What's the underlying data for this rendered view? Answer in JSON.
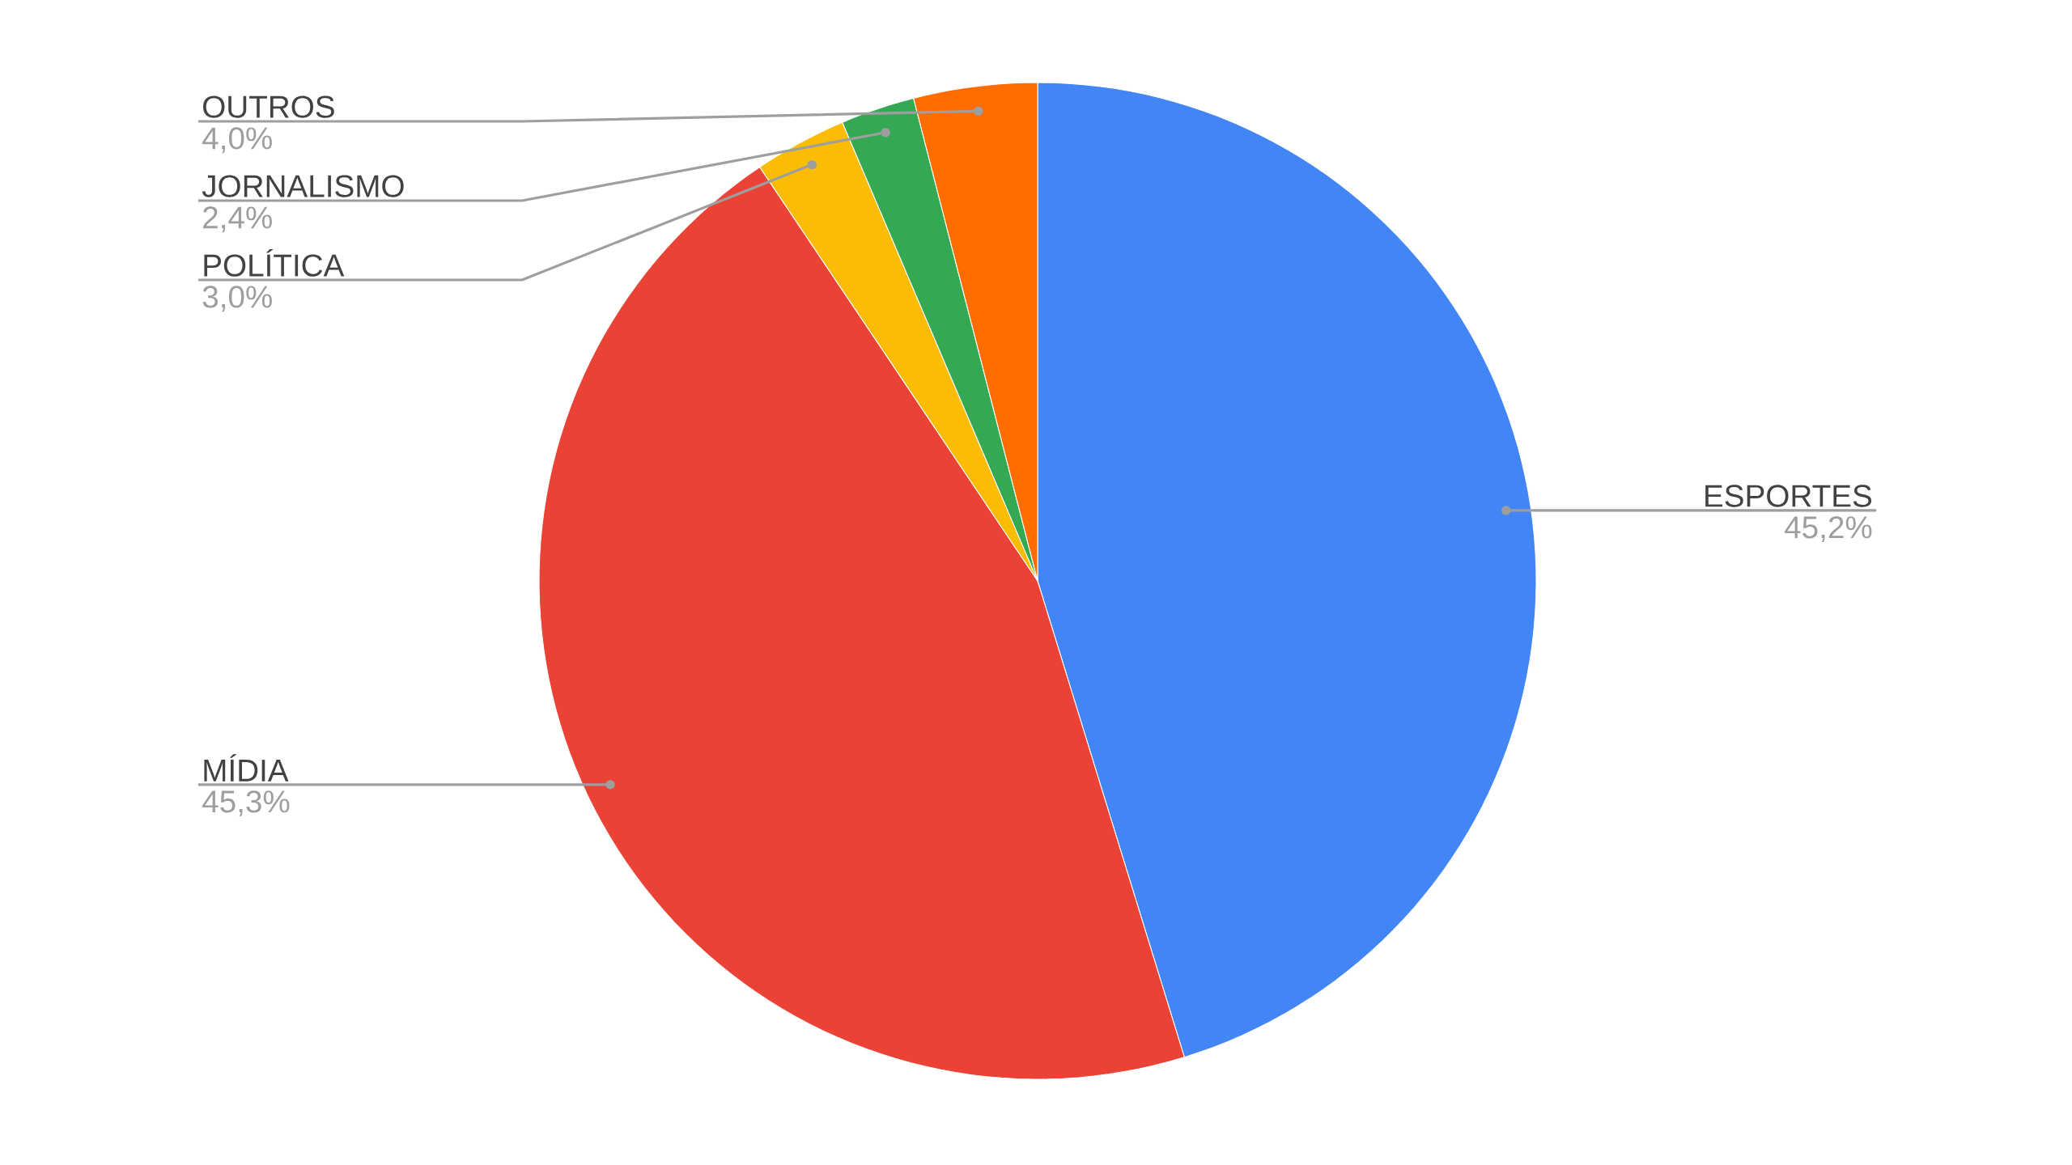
{
  "chart_data": {
    "type": "pie",
    "categories": [
      "ESPORTES",
      "MÍDIA",
      "POLÍTICA",
      "JORNALISMO",
      "OUTROS"
    ],
    "values": [
      45.2,
      45.3,
      3.0,
      2.4,
      4.0
    ],
    "value_labels": [
      "45,2%",
      "45,3%",
      "3,0%",
      "2,4%",
      "4,0%"
    ],
    "colors": [
      "#4285f4",
      "#ea4335",
      "#fbbc04",
      "#34a853",
      "#ff6d01"
    ]
  }
}
